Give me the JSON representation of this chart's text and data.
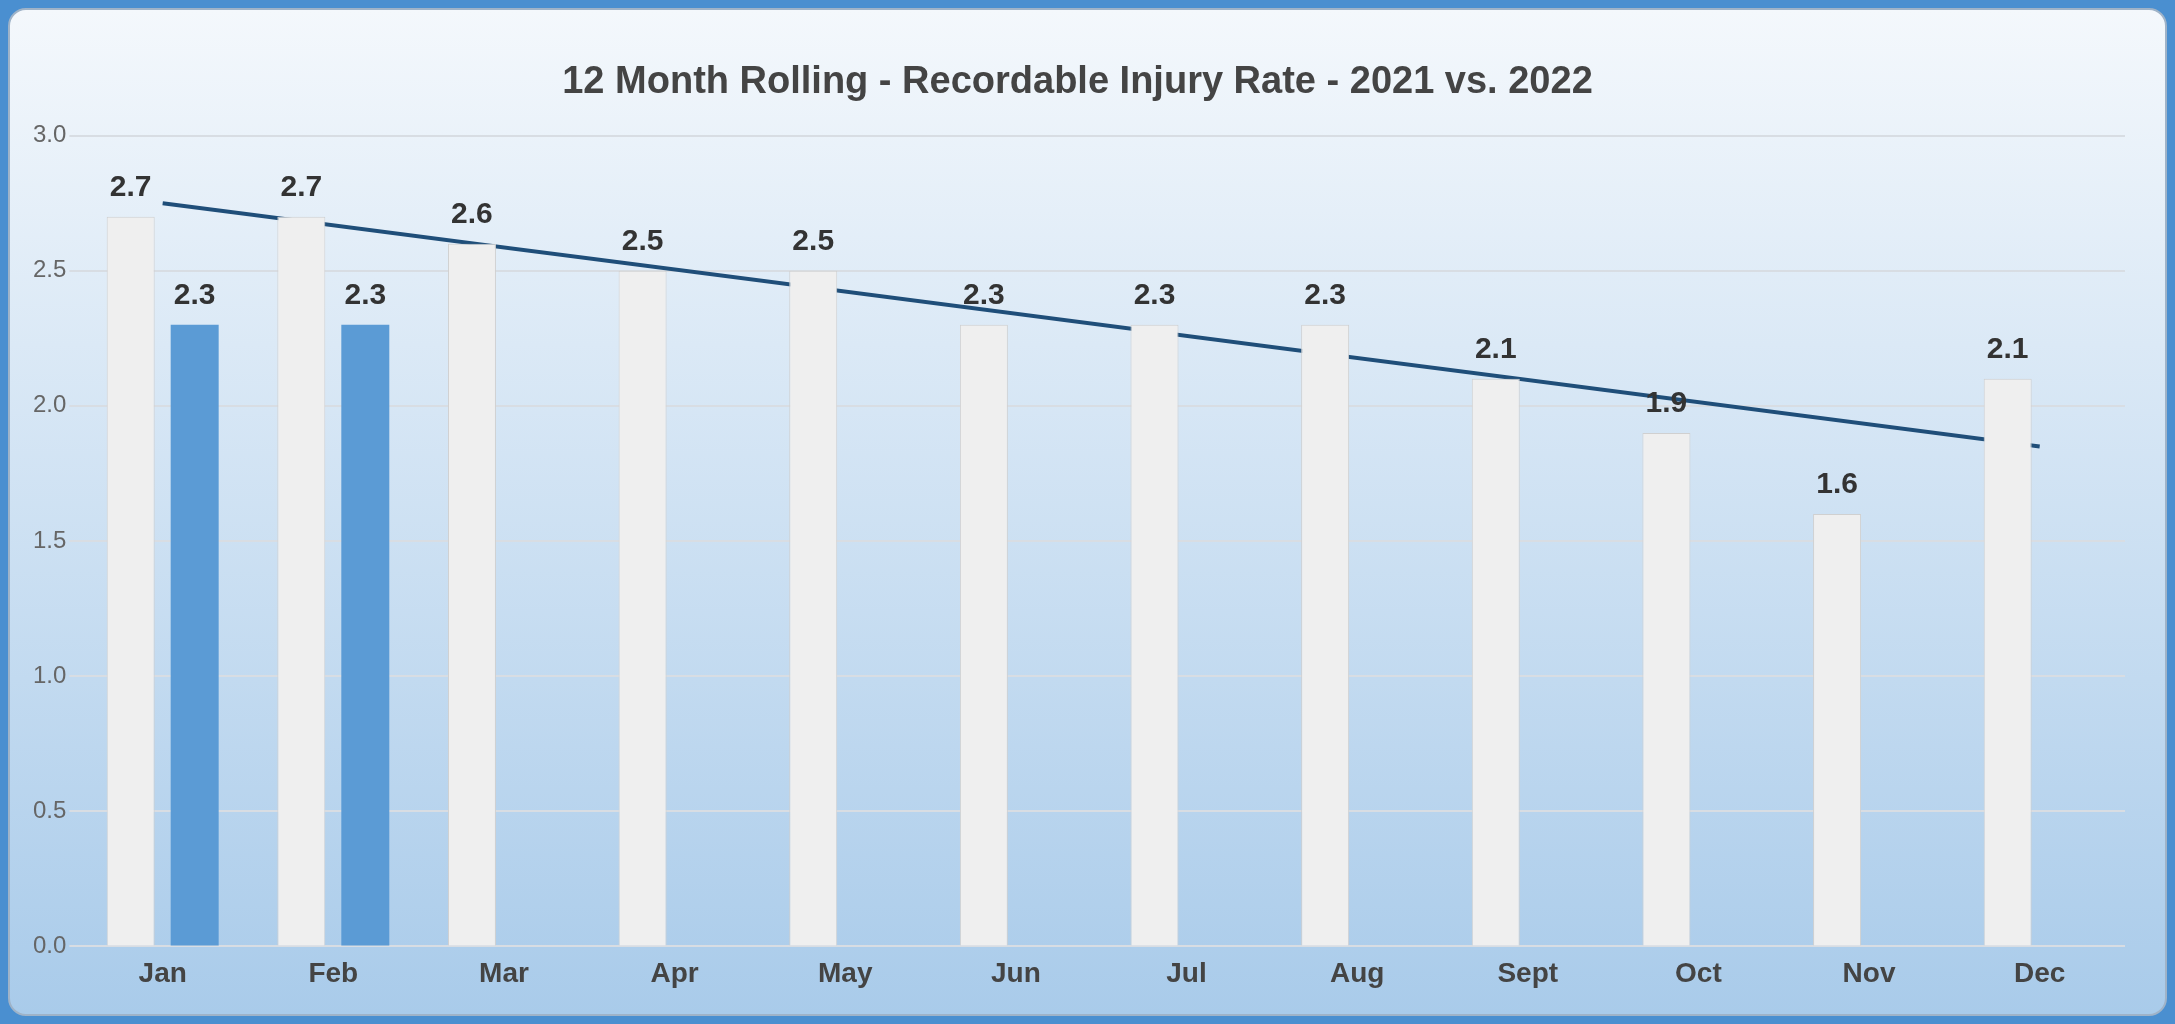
{
  "chart_data": {
    "type": "bar",
    "title": "12 Month Rolling - Recordable Injury Rate - 2021 vs. 2022",
    "categories": [
      "Jan",
      "Feb",
      "Mar",
      "Apr",
      "May",
      "Jun",
      "Jul",
      "Aug",
      "Sept",
      "Oct",
      "Nov",
      "Dec"
    ],
    "series": [
      {
        "color": "#efefef",
        "values": [
          2.7,
          2.7,
          2.6,
          2.5,
          2.5,
          2.3,
          2.3,
          2.3,
          2.1,
          1.9,
          1.6,
          2.1
        ],
        "value_labels": [
          "2.7",
          "2.7",
          "2.6",
          "2.5",
          "2.5",
          "2.3",
          "2.3",
          "2.3",
          "2.1",
          "1.9",
          "1.6",
          "2.1"
        ]
      },
      {
        "color": "#5b9bd5",
        "values": [
          2.3,
          2.3,
          null,
          null,
          null,
          null,
          null,
          null,
          null,
          null,
          null,
          null
        ],
        "value_labels": [
          "2.3",
          "2.3",
          null,
          null,
          null,
          null,
          null,
          null,
          null,
          null,
          null,
          null
        ]
      },
      {
        "type": "line",
        "color": "#1f4e79",
        "values": [
          2.75,
          null,
          null,
          null,
          null,
          null,
          null,
          null,
          null,
          null,
          null,
          1.85
        ]
      }
    ],
    "ylim": [
      0,
      3
    ],
    "yticks": [
      {
        "value": 0,
        "label": "0.0"
      },
      {
        "value": 0.5,
        "label": "0.5"
      },
      {
        "value": 1,
        "label": "1.0"
      },
      {
        "value": 1.5,
        "label": "1.5"
      },
      {
        "value": 2,
        "label": "2.0"
      },
      {
        "value": 2.5,
        "label": "2.5"
      },
      {
        "value": 3,
        "label": "3.0"
      }
    ],
    "grid": "y",
    "legend": false,
    "marker": "none"
  }
}
